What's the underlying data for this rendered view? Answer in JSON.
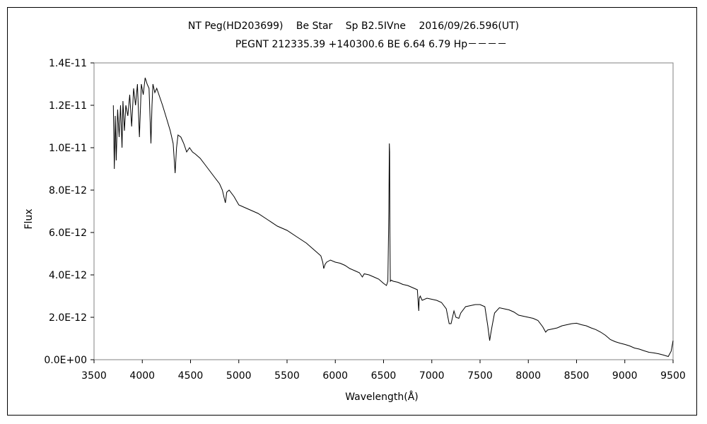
{
  "chart_data": {
    "type": "line",
    "title_line1": "NT Peg(HD203699)　 Be Star 　Sp B2.5IVne 　2016/09/26.596(UT)",
    "title_line2": "PEGNT 212335.39 +140300.6 BE 6.64 6.79 Hp－－－－",
    "xlabel": "Wavelength(Å)",
    "ylabel": "Flux",
    "xlim": [
      3500,
      9500
    ],
    "ylim": [
      0,
      1.4e-11
    ],
    "xticks": [
      "3500",
      "4000",
      "4500",
      "5000",
      "5500",
      "6000",
      "6500",
      "7000",
      "7500",
      "8000",
      "8500",
      "9000",
      "9500"
    ],
    "yticks": [
      "0.0E+00",
      "2.0E-12",
      "4.0E-12",
      "6.0E-12",
      "8.0E-12",
      "1.0E-11",
      "1.2E-11",
      "1.4E-11"
    ],
    "grid": false,
    "series": [
      {
        "color": "#000000",
        "x": [
          3700,
          3710,
          3720,
          3730,
          3745,
          3760,
          3775,
          3790,
          3800,
          3815,
          3830,
          3850,
          3870,
          3890,
          3910,
          3930,
          3950,
          3970,
          3990,
          4010,
          4030,
          4050,
          4070,
          4090,
          4101,
          4110,
          4130,
          4150,
          4180,
          4210,
          4250,
          4290,
          4320,
          4340,
          4355,
          4370,
          4400,
          4430,
          4460,
          4490,
          4520,
          4550,
          4600,
          4650,
          4700,
          4750,
          4800,
          4830,
          4850,
          4861,
          4875,
          4900,
          4950,
          5000,
          5050,
          5100,
          5150,
          5200,
          5300,
          5400,
          5500,
          5600,
          5700,
          5800,
          5850,
          5870,
          5880,
          5895,
          5910,
          5950,
          6000,
          6050,
          6100,
          6150,
          6200,
          6250,
          6280,
          6300,
          6350,
          6400,
          6450,
          6500,
          6530,
          6545,
          6555,
          6560,
          6563,
          6566,
          6570,
          6580,
          6600,
          6650,
          6700,
          6750,
          6800,
          6850,
          6865,
          6870,
          6880,
          6900,
          6950,
          7000,
          7050,
          7100,
          7150,
          7180,
          7200,
          7230,
          7250,
          7280,
          7300,
          7350,
          7400,
          7450,
          7500,
          7550,
          7580,
          7600,
          7610,
          7625,
          7650,
          7700,
          7750,
          7800,
          7850,
          7900,
          7950,
          8000,
          8050,
          8100,
          8150,
          8180,
          8200,
          8250,
          8300,
          8350,
          8400,
          8450,
          8500,
          8550,
          8600,
          8650,
          8700,
          8750,
          8800,
          8850,
          8900,
          8950,
          9000,
          9050,
          9100,
          9150,
          9200,
          9250,
          9300,
          9350,
          9400,
          9450,
          9480,
          9500
        ],
        "values": [
          1.2e-11,
          9e-12,
          1.15e-11,
          9.4e-12,
          1.18e-11,
          1.05e-11,
          1.2e-11,
          1e-11,
          1.22e-11,
          1.08e-11,
          1.2e-11,
          1.15e-11,
          1.25e-11,
          1.1e-11,
          1.28e-11,
          1.2e-11,
          1.3e-11,
          1.05e-11,
          1.3e-11,
          1.25e-11,
          1.33e-11,
          1.3e-11,
          1.28e-11,
          1.02e-11,
          1.2e-11,
          1.3e-11,
          1.26e-11,
          1.28e-11,
          1.24e-11,
          1.2e-11,
          1.14e-11,
          1.08e-11,
          1.02e-11,
          8.8e-12,
          1e-11,
          1.06e-11,
          1.05e-11,
          1.02e-11,
          9.8e-12,
          1e-11,
          9.8e-12,
          9.7e-12,
          9.5e-12,
          9.2e-12,
          8.9e-12,
          8.6e-12,
          8.3e-12,
          8e-12,
          7.6e-12,
          7.4e-12,
          7.9e-12,
          8e-12,
          7.7e-12,
          7.3e-12,
          7.2e-12,
          7.1e-12,
          7e-12,
          6.9e-12,
          6.6e-12,
          6.3e-12,
          6.1e-12,
          5.8e-12,
          5.5e-12,
          5.1e-12,
          4.9e-12,
          4.6e-12,
          4.3e-12,
          4.5e-12,
          4.6e-12,
          4.7e-12,
          4.6e-12,
          4.55e-12,
          4.45e-12,
          4.3e-12,
          4.2e-12,
          4.1e-12,
          3.9e-12,
          4.05e-12,
          4e-12,
          3.9e-12,
          3.8e-12,
          3.6e-12,
          3.5e-12,
          3.7e-12,
          7e-12,
          1.02e-11,
          9.8e-12,
          6e-12,
          3.7e-12,
          3.75e-12,
          3.7e-12,
          3.65e-12,
          3.55e-12,
          3.5e-12,
          3.4e-12,
          3.3e-12,
          2.3e-12,
          2.9e-12,
          3e-12,
          2.8e-12,
          2.9e-12,
          2.85e-12,
          2.8e-12,
          2.7e-12,
          2.4e-12,
          1.7e-12,
          1.7e-12,
          2.3e-12,
          2e-12,
          1.95e-12,
          2.2e-12,
          2.5e-12,
          2.55e-12,
          2.6e-12,
          2.6e-12,
          2.5e-12,
          1.6e-12,
          9e-13,
          1.2e-12,
          1.6e-12,
          2.2e-12,
          2.45e-12,
          2.4e-12,
          2.35e-12,
          2.25e-12,
          2.1e-12,
          2.05e-12,
          2e-12,
          1.95e-12,
          1.85e-12,
          1.55e-12,
          1.3e-12,
          1.4e-12,
          1.45e-12,
          1.5e-12,
          1.6e-12,
          1.65e-12,
          1.7e-12,
          1.72e-12,
          1.65e-12,
          1.6e-12,
          1.5e-12,
          1.42e-12,
          1.3e-12,
          1.15e-12,
          9.5e-13,
          8.5e-13,
          7.8e-13,
          7.2e-13,
          6.5e-13,
          5.5e-13,
          5e-13,
          4.2e-13,
          3.5e-13,
          3.2e-13,
          2.8e-13,
          2.2e-13,
          1.5e-13,
          4e-13,
          9e-13
        ]
      }
    ]
  }
}
